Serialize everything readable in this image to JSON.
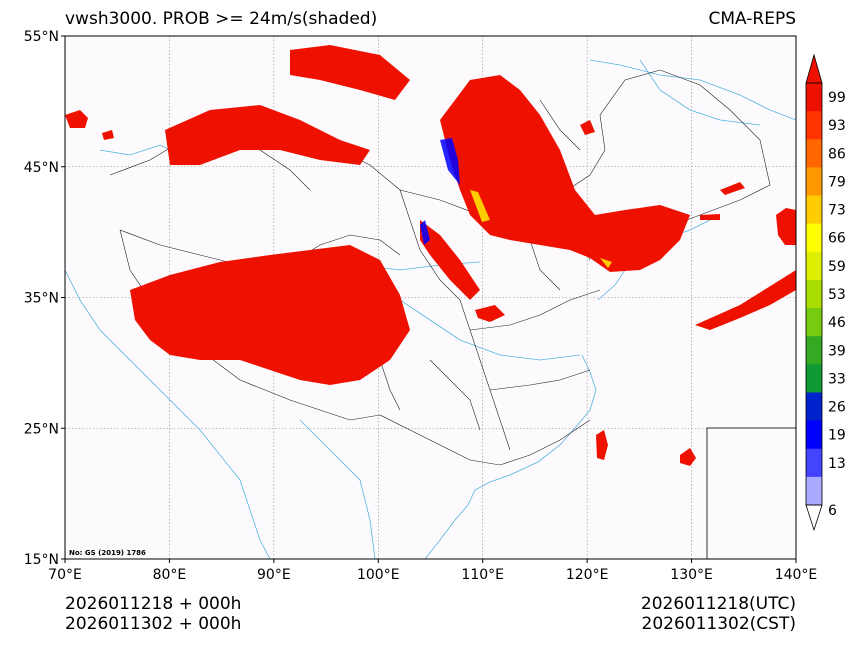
{
  "title": {
    "left": "vwsh3000. PROB >= 24m/s(shaded)",
    "right": "CMA-REPS"
  },
  "map": {
    "lat_ticks": [
      "55°N",
      "45°N",
      "35°N",
      "25°N",
      "15°N"
    ],
    "lon_ticks": [
      "70°E",
      "80°E",
      "90°E",
      "100°E",
      "110°E",
      "120°E",
      "130°E",
      "140°E"
    ],
    "lon_range": [
      70,
      140
    ],
    "lat_range": [
      15,
      55
    ],
    "certificate": "No: GS (2019) 1786"
  },
  "colorbar": {
    "labels": [
      "99",
      "93",
      "86",
      "79",
      "73",
      "66",
      "59",
      "53",
      "46",
      "39",
      "33",
      "26",
      "19",
      "13",
      "6"
    ],
    "colors": [
      "#ee1100",
      "#ff3300",
      "#ff6600",
      "#ff9900",
      "#ffcc00",
      "#ffff00",
      "#ddee00",
      "#aadd00",
      "#77cc11",
      "#33aa22",
      "#119933",
      "#0022cc",
      "#0000ff",
      "#4444ff",
      "#aaaaff"
    ]
  },
  "footer": {
    "left_line1": "2026011218  +  000h",
    "left_line2": "2026011302  +  000h",
    "right_line1": "2026011218(UTC)",
    "right_line2": "2026011302(CST)"
  }
}
